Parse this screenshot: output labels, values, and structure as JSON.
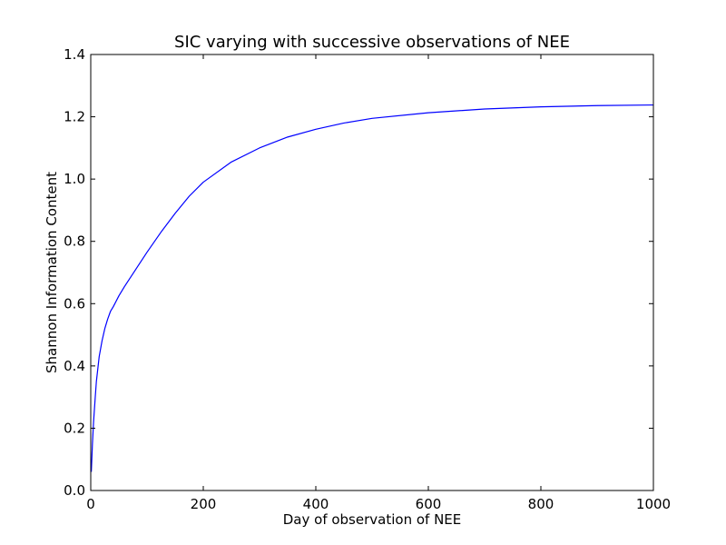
{
  "chart_data": {
    "type": "line",
    "title": "SIC varying with successive observations of NEE",
    "xlabel": "Day of observation of NEE",
    "ylabel": "Shannon Information Content",
    "xlim": [
      0,
      1000
    ],
    "ylim": [
      0.0,
      1.4
    ],
    "x_ticks": [
      "0",
      "200",
      "400",
      "600",
      "800",
      "1000"
    ],
    "y_ticks": [
      "0.0",
      "0.2",
      "0.4",
      "0.6",
      "0.8",
      "1.0",
      "1.2",
      "1.4"
    ],
    "grid": false,
    "legend": "none",
    "series": [
      {
        "color": "#0000ff",
        "x": [
          1,
          3,
          5,
          8,
          10,
          15,
          20,
          25,
          30,
          35,
          40,
          50,
          60,
          80,
          100,
          125,
          150,
          175,
          200,
          250,
          300,
          350,
          400,
          450,
          500,
          600,
          700,
          800,
          900,
          1000
        ],
        "y": [
          0.06,
          0.15,
          0.22,
          0.3,
          0.35,
          0.43,
          0.48,
          0.52,
          0.55,
          0.575,
          0.59,
          0.625,
          0.655,
          0.71,
          0.765,
          0.83,
          0.89,
          0.945,
          0.99,
          1.055,
          1.1,
          1.135,
          1.16,
          1.18,
          1.195,
          1.213,
          1.225,
          1.232,
          1.236,
          1.238
        ]
      }
    ]
  }
}
